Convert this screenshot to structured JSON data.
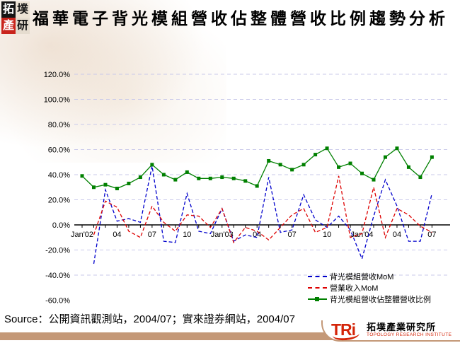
{
  "header": {
    "logo_seal": {
      "chars": [
        "拓",
        "墣",
        "產",
        "研"
      ]
    },
    "title": "福華電子背光模組營收佔整體營收比例趨勢分析"
  },
  "chart_data": {
    "type": "line",
    "title": "福華電子背光模組營收佔整體營收比例趨勢分析",
    "grid": "horizontal-dashed",
    "legend_position": "bottom-right",
    "x_tick_labels": [
      "Jan'02",
      "04",
      "07",
      "10",
      "Jan'03",
      "04",
      "07",
      "10",
      "Jan'04",
      "04",
      "07"
    ],
    "months": [
      "Jan'02",
      "Feb'02",
      "Mar'02",
      "Apr'02",
      "May'02",
      "Jun'02",
      "Jul'02",
      "Aug'02",
      "Sep'02",
      "Oct'02",
      "Nov'02",
      "Dec'02",
      "Jan'03",
      "Feb'03",
      "Mar'03",
      "Apr'03",
      "May'03",
      "Jun'03",
      "Jul'03",
      "Aug'03",
      "Sep'03",
      "Oct'03",
      "Nov'03",
      "Dec'03",
      "Jan'04",
      "Feb'04",
      "Mar'04",
      "Apr'04",
      "May'04",
      "Jun'04",
      "Jul'04"
    ],
    "y_axis": {
      "min": -60,
      "max": 120,
      "step": 20,
      "unit": "%",
      "tick_labels": [
        "120.0%",
        "100.0%",
        "80.0%",
        "60.0%",
        "40.0%",
        "20.0%",
        "0.0%",
        "-20.0%",
        "-40.0%",
        "-60.0%"
      ]
    },
    "series": [
      {
        "name": "背光模組營收MoM",
        "color": "#0000cc",
        "style": "dashed",
        "values": [
          null,
          -31,
          28,
          3,
          5,
          2,
          47,
          -13,
          -14,
          25,
          -5,
          -7,
          13,
          -13,
          -8,
          -10,
          38,
          -6,
          -4,
          24,
          4,
          -2,
          7,
          -4,
          -27,
          7,
          36,
          15,
          -13,
          -13,
          25
        ]
      },
      {
        "name": "營業收入MoM",
        "color": "#dd0000",
        "style": "dashed",
        "values": [
          null,
          -8,
          19,
          14,
          -5,
          -10,
          15,
          2,
          -5,
          8,
          7,
          -2,
          13,
          -14,
          -2,
          -5,
          -12,
          -2,
          8,
          13,
          -6,
          -2,
          39,
          -10,
          -7,
          30,
          -10,
          13,
          8,
          -1,
          -6
        ]
      },
      {
        "name": "背光模組營收佔整體營收比例",
        "color": "#008000",
        "style": "solid-square-markers",
        "values": [
          39,
          30,
          32,
          29,
          33,
          38,
          48,
          40,
          36,
          42,
          37,
          37,
          38,
          37,
          35,
          31,
          51,
          48,
          44,
          48,
          56,
          61,
          46,
          49,
          41,
          36,
          54,
          61,
          46,
          38,
          54
        ]
      }
    ]
  },
  "footer": {
    "source_text": "Source：公開資訊觀測站，2004/07；實來證券網站，2004/07",
    "tri_logo": {
      "wordmark": "TRi",
      "name_zh": "拓墣產業研究所",
      "name_en": "TOPOLOGY RESEARCH INSTITUTE"
    }
  },
  "colors": {
    "backlight_mom_line": "#0000cc",
    "revenue_mom_line": "#dd0000",
    "ratio_line": "#008000",
    "gridline": "#c9c9ea",
    "axis": "#000000",
    "footer_bar": "#c49877",
    "tri_red": "#d42408",
    "seal_red": "#c9241c"
  }
}
